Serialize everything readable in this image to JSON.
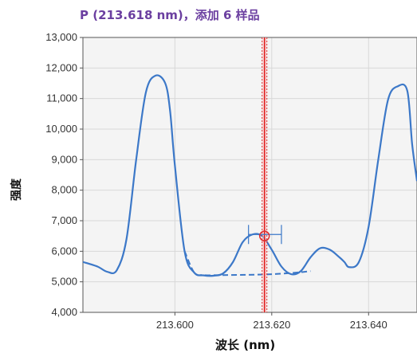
{
  "chart_data": {
    "type": "line",
    "title": "P (213.618 nm)，添加 6 样品",
    "xlabel": "波长 (nm)",
    "ylabel": "强度",
    "xlim": [
      213.581,
      213.65
    ],
    "ylim": [
      4000,
      13000
    ],
    "x_ticks": [
      213.6,
      213.62,
      213.64
    ],
    "x_tick_labels": [
      "213.600",
      "213.620",
      "213.640"
    ],
    "y_ticks": [
      4000,
      5000,
      6000,
      7000,
      8000,
      9000,
      10000,
      11000,
      12000,
      13000
    ],
    "y_tick_labels": [
      "4,000",
      "5,000",
      "6,000",
      "7,000",
      "8,000",
      "9,000",
      "10,000",
      "11,000",
      "12,000",
      "13,000"
    ],
    "grid": true,
    "marker_wavelength": 213.6185,
    "peak_window": {
      "x": [
        213.6152,
        213.622
      ],
      "y": 6550
    },
    "series": [
      {
        "style": "solid",
        "color": "#3c78c8",
        "x": [
          213.581,
          213.584,
          213.586,
          213.588,
          213.59,
          213.592,
          213.594,
          213.596,
          213.598,
          213.599,
          213.6,
          213.602,
          213.604,
          213.606,
          213.608,
          213.61,
          213.612,
          213.614,
          213.616,
          213.618,
          213.62,
          213.622,
          213.624,
          213.626,
          213.628,
          213.63,
          213.632,
          213.634,
          213.635,
          213.636,
          213.638,
          213.64,
          213.642,
          213.644,
          213.646,
          213.648,
          213.649,
          213.65
        ],
        "y": [
          5650,
          5500,
          5330,
          5380,
          6400,
          9000,
          11200,
          11750,
          11500,
          10600,
          8800,
          6000,
          5300,
          5210,
          5200,
          5280,
          5650,
          6300,
          6550,
          6500,
          6050,
          5500,
          5250,
          5350,
          5800,
          6100,
          6050,
          5800,
          5650,
          5480,
          5650,
          6800,
          9000,
          10950,
          11400,
          11250,
          9500,
          8300
        ]
      },
      {
        "style": "dashed",
        "color": "#3c78c8",
        "x": [
          213.602,
          213.604,
          213.606,
          213.61,
          213.615,
          213.62,
          213.625,
          213.628
        ],
        "y": [
          6000,
          5300,
          5220,
          5220,
          5230,
          5250,
          5300,
          5350
        ]
      }
    ]
  }
}
